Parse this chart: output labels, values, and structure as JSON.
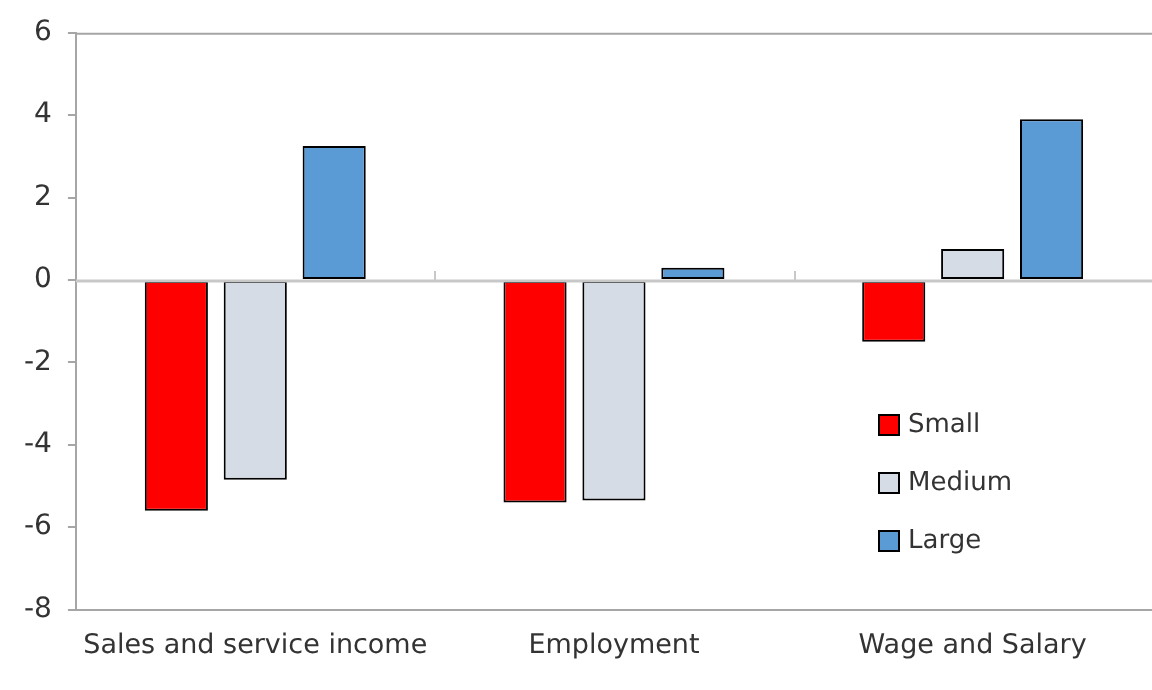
{
  "chart_data": {
    "type": "bar",
    "categories": [
      "Sales and service income",
      "Employment",
      "Wage and Salary"
    ],
    "series": [
      {
        "name": "Small",
        "color": "#ff0000",
        "values": [
          -5.6,
          -5.4,
          -1.5
        ]
      },
      {
        "name": "Medium",
        "color": "#d6dce5",
        "values": [
          -4.85,
          -5.35,
          0.75
        ]
      },
      {
        "name": "Large",
        "color": "#5b9bd5",
        "values": [
          3.25,
          0.3,
          3.9
        ]
      }
    ],
    "ylim": [
      -8,
      6
    ],
    "yticks": [
      -8,
      -6,
      -4,
      -2,
      0,
      2,
      4,
      6
    ],
    "grid": false,
    "ref_lines": [
      {
        "axis": "y",
        "value": 0,
        "color": "#c8c8c8"
      }
    ],
    "legend": "right"
  }
}
